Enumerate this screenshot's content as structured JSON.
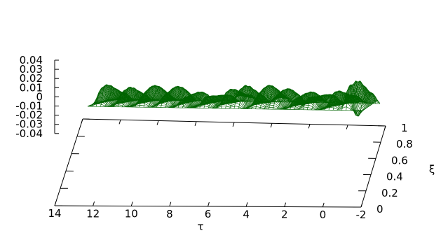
{
  "chart_data": {
    "type": "surface",
    "subtype": "3d-wireframe",
    "title": "",
    "xlabel": "τ",
    "ylabel": "ξ",
    "zlabel": "",
    "xlim": [
      -2,
      14
    ],
    "ylim": [
      0,
      1
    ],
    "zlim": [
      -0.05,
      0.04
    ],
    "x_ticks": [
      "14",
      "12",
      "10",
      "8",
      "6",
      "4",
      "2",
      "0",
      "-2"
    ],
    "y_ticks": [
      "0",
      "0.2",
      "0.4",
      "0.6",
      "0.8",
      "1"
    ],
    "z_ticks": [
      "0.04",
      "0.03",
      "0.02",
      "0.01",
      "0",
      "-0.01",
      "-0.02",
      "-0.03",
      "-0.04"
    ],
    "series": [
      {
        "color": "#006400",
        "grid": {
          "x_points": 64,
          "y_points": 41,
          "ridges_tau": [
            -1.5,
            -0.6,
            0.8,
            1.7,
            2.9,
            3.8,
            5.0,
            5.7,
            6.9,
            8.3,
            9.4,
            10.6,
            11.9,
            13.1
          ],
          "ridge_heights": [
            0.036,
            0.028,
            0.024,
            0.021,
            0.02,
            0.022,
            0.024,
            0.026,
            0.021,
            0.02,
            0.022,
            0.02,
            0.019,
            0.027
          ],
          "trough_at_tau": -1.6,
          "trough_depth": -0.012
        }
      }
    ],
    "grid": false,
    "legend": "none"
  }
}
